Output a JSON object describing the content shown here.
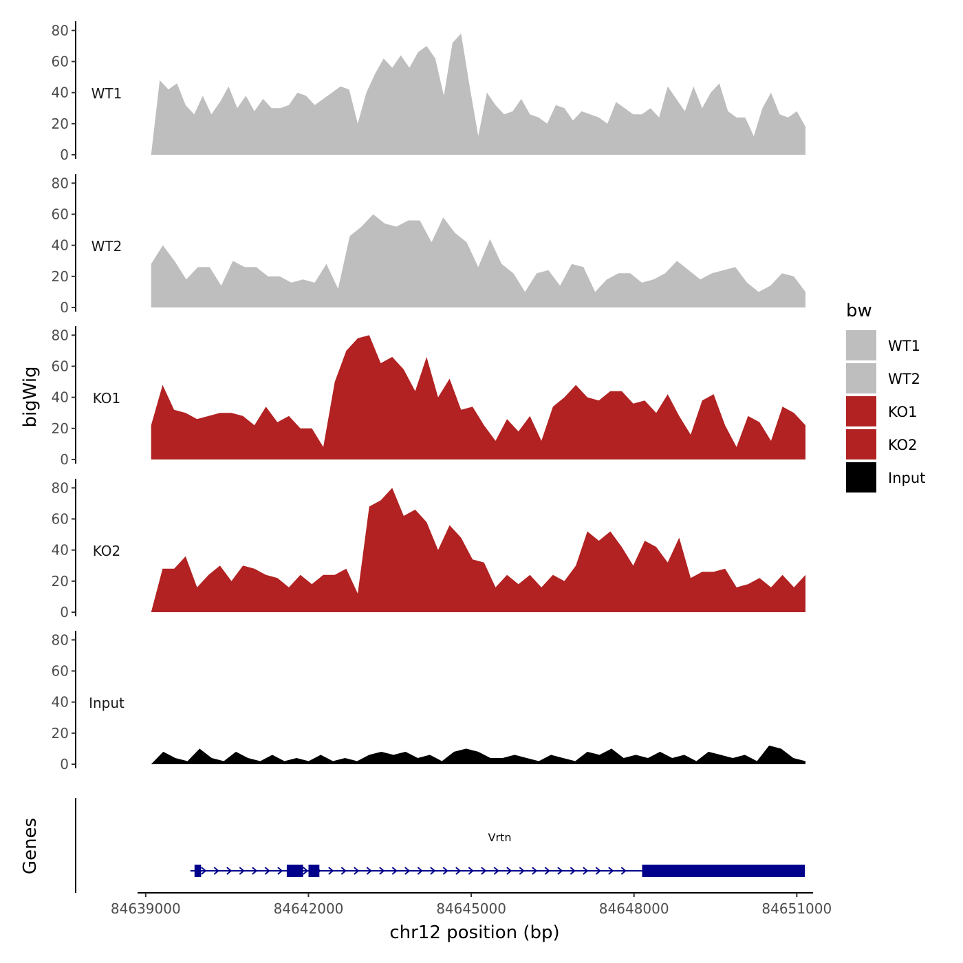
{
  "chart_data": {
    "type": "area",
    "title": "",
    "xlabel": "chr12 position (bp)",
    "ylabel": "bigWig",
    "genes_label": "Genes",
    "xlim": [
      84638850,
      84651300
    ],
    "ylim": [
      0,
      85
    ],
    "x_ticks": [
      84639000,
      84642000,
      84645000,
      84648000,
      84651000
    ],
    "x_tick_labels": [
      "84639000",
      "84642000",
      "84645000",
      "84648000",
      "84651000"
    ],
    "y_ticks": [
      0,
      20,
      40,
      60,
      80
    ],
    "y_tick_labels": [
      "0",
      "20",
      "40",
      "60",
      "80"
    ],
    "x_start": 84639100,
    "x_step": 240,
    "legend": {
      "title": "bw",
      "entries": [
        {
          "label": "WT1",
          "color": "#bebebe"
        },
        {
          "label": "WT2",
          "color": "#bebebe"
        },
        {
          "label": "KO1",
          "color": "#b22222"
        },
        {
          "label": "KO2",
          "color": "#b22222"
        },
        {
          "label": "Input",
          "color": "#000000"
        }
      ]
    },
    "series": [
      {
        "name": "WT1",
        "color": "#bebebe",
        "values": [
          0,
          48,
          42,
          46,
          32,
          26,
          38,
          26,
          34,
          44,
          30,
          38,
          28,
          36,
          30,
          30,
          32,
          40,
          38,
          32,
          36,
          40,
          44,
          42,
          20,
          40,
          52,
          62,
          56,
          64,
          56,
          66,
          70,
          62,
          38,
          72,
          78,
          44,
          12,
          40,
          32,
          26,
          28,
          36,
          26,
          24,
          20,
          32,
          30,
          22,
          28,
          26,
          24,
          20,
          34,
          30,
          26,
          26,
          30,
          24,
          44,
          36,
          28,
          44,
          30,
          40,
          46,
          28,
          24,
          24,
          12,
          30,
          40,
          26,
          24,
          28,
          18
        ]
      },
      {
        "name": "WT2",
        "color": "#bebebe",
        "values": [
          28,
          40,
          30,
          18,
          26,
          26,
          14,
          30,
          26,
          26,
          20,
          20,
          16,
          18,
          16,
          28,
          12,
          46,
          52,
          60,
          54,
          52,
          56,
          56,
          42,
          58,
          48,
          42,
          26,
          44,
          28,
          22,
          10,
          22,
          24,
          14,
          28,
          26,
          10,
          18,
          22,
          22,
          16,
          18,
          22,
          30,
          24,
          18,
          22,
          24,
          26,
          16,
          10,
          14,
          22,
          20,
          10
        ]
      },
      {
        "name": "KO1",
        "color": "#b22222",
        "values": [
          22,
          48,
          32,
          30,
          26,
          28,
          30,
          30,
          28,
          22,
          34,
          24,
          28,
          20,
          20,
          8,
          50,
          70,
          78,
          80,
          62,
          66,
          58,
          44,
          66,
          40,
          52,
          32,
          34,
          22,
          12,
          26,
          18,
          28,
          12,
          34,
          40,
          48,
          40,
          38,
          44,
          44,
          36,
          38,
          30,
          42,
          28,
          16,
          38,
          42,
          22,
          8,
          28,
          24,
          12,
          34,
          30,
          22
        ]
      },
      {
        "name": "KO2",
        "color": "#b22222",
        "values": [
          0,
          28,
          28,
          36,
          16,
          24,
          30,
          20,
          30,
          28,
          24,
          22,
          16,
          24,
          18,
          24,
          24,
          28,
          12,
          68,
          72,
          80,
          62,
          66,
          58,
          40,
          56,
          48,
          34,
          32,
          16,
          24,
          18,
          24,
          16,
          24,
          20,
          30,
          52,
          46,
          52,
          42,
          30,
          46,
          42,
          32,
          48,
          22,
          26,
          26,
          28,
          16,
          18,
          22,
          16,
          24,
          16,
          24
        ]
      },
      {
        "name": "Input",
        "color": "#000000",
        "values": [
          0,
          8,
          4,
          2,
          10,
          4,
          2,
          8,
          4,
          2,
          6,
          2,
          4,
          2,
          6,
          2,
          4,
          2,
          6,
          8,
          6,
          8,
          4,
          6,
          2,
          8,
          10,
          8,
          4,
          4,
          6,
          4,
          2,
          6,
          4,
          2,
          8,
          6,
          10,
          4,
          6,
          4,
          8,
          4,
          6,
          2,
          8,
          6,
          4,
          6,
          2,
          12,
          10,
          4,
          2
        ]
      }
    ],
    "gene": {
      "name": "Vrtn",
      "start": 84639900,
      "end": 84651150,
      "strand": "+",
      "exons": [
        [
          84639900,
          84640020
        ],
        [
          84641600,
          84641900
        ],
        [
          84642000,
          84642200
        ],
        [
          84648150,
          84651150
        ]
      ]
    }
  }
}
